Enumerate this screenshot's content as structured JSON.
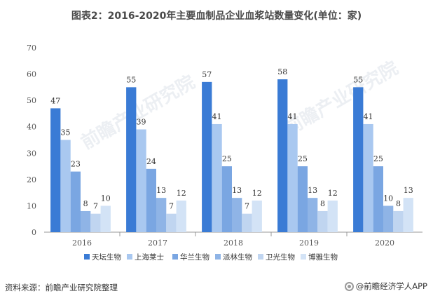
{
  "title": "图表2：2016-2020年主要血制品企业血浆站数量变化(单位：家)",
  "source": "资料来源：前瞻产业研究院整理",
  "brand": "@前瞻经济学人APP",
  "watermark": "前瞻产业研究院",
  "chart_data": {
    "type": "bar",
    "categories": [
      "2016",
      "2017",
      "2018",
      "2019",
      "2020"
    ],
    "ylim": [
      0,
      70
    ],
    "yticks": [
      0,
      10,
      20,
      30,
      40,
      50,
      60,
      70
    ],
    "legend_position": "bottom",
    "series": [
      {
        "name": "天坛生物",
        "color": "#3a7bd5",
        "values": [
          47,
          55,
          57,
          58,
          55
        ]
      },
      {
        "name": "上海莱士",
        "color": "#a9c8f0",
        "values": [
          35,
          39,
          41,
          41,
          41
        ]
      },
      {
        "name": "华兰生物",
        "color": "#7aa6e2",
        "values": [
          23,
          24,
          25,
          25,
          25
        ]
      },
      {
        "name": "派林生物",
        "color": "#8fb4e6",
        "values": [
          8,
          13,
          13,
          13,
          10
        ]
      },
      {
        "name": "卫光生物",
        "color": "#c0d5f0",
        "values": [
          7,
          7,
          7,
          8,
          8
        ]
      },
      {
        "name": "博雅生物",
        "color": "#d3e3f6",
        "values": [
          10,
          12,
          12,
          12,
          13
        ]
      }
    ]
  }
}
